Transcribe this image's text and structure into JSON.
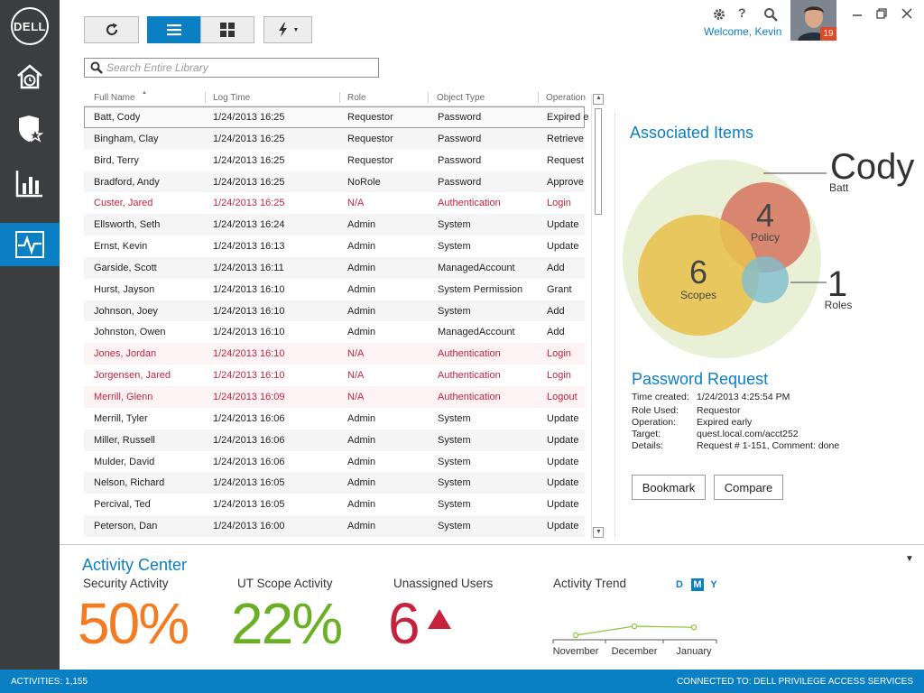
{
  "nav": {
    "logo": "DELL",
    "items": [
      {
        "icon": "home-clock-icon",
        "active": false
      },
      {
        "icon": "shield-star-icon",
        "active": false
      },
      {
        "icon": "bar-chart-icon",
        "active": false
      },
      {
        "icon": "activity-pulse-icon",
        "active": true
      }
    ]
  },
  "toolbar": {
    "buttons": [
      "refresh-icon",
      "list-view-icon",
      "grid-view-icon",
      "actions-bolt-icon"
    ],
    "active": "list-view-icon"
  },
  "search": {
    "placeholder": "Search Entire Library"
  },
  "topbar": {
    "welcome": "Welcome, Kevin",
    "badge": "19",
    "icons": [
      "gear-icon",
      "help-icon",
      "search-icon"
    ]
  },
  "table": {
    "columns": [
      "Full Name",
      "Log Time",
      "Role",
      "Object Type",
      "Operation"
    ],
    "rows": [
      {
        "name": "Batt, Cody",
        "time": "1/24/2013 16:25",
        "role": "Requestor",
        "type": "Password",
        "op": "Expired e",
        "alert": false,
        "selected": true
      },
      {
        "name": "Bingham, Clay",
        "time": "1/24/2013 16:25",
        "role": "Requestor",
        "type": "Password",
        "op": "Retrieve",
        "alert": false,
        "selected": false
      },
      {
        "name": "Bird, Terry",
        "time": "1/24/2013 16:25",
        "role": "Requestor",
        "type": "Password",
        "op": "Request",
        "alert": false,
        "selected": false
      },
      {
        "name": "Bradford, Andy",
        "time": "1/24/2013 16:25",
        "role": "NoRole",
        "type": "Password",
        "op": "Approve",
        "alert": false,
        "selected": false
      },
      {
        "name": "Custer, Jared",
        "time": "1/24/2013 16:25",
        "role": "N/A",
        "type": "Authentication",
        "op": "Login",
        "alert": true,
        "selected": false
      },
      {
        "name": "Ellsworth, Seth",
        "time": "1/24/2013 16:24",
        "role": "Admin",
        "type": "System",
        "op": "Update",
        "alert": false,
        "selected": false
      },
      {
        "name": "Ernst, Kevin",
        "time": "1/24/2013 16:13",
        "role": "Admin",
        "type": "System",
        "op": "Update",
        "alert": false,
        "selected": false
      },
      {
        "name": "Garside, Scott",
        "time": "1/24/2013 16:11",
        "role": "Admin",
        "type": "ManagedAccount",
        "op": "Add",
        "alert": false,
        "selected": false
      },
      {
        "name": "Hurst, Jayson",
        "time": "1/24/2013 16:10",
        "role": "Admin",
        "type": "System Permission",
        "op": "Grant",
        "alert": false,
        "selected": false
      },
      {
        "name": "Johnson, Joey",
        "time": "1/24/2013 16:10",
        "role": "Admin",
        "type": "System",
        "op": "Add",
        "alert": false,
        "selected": false
      },
      {
        "name": "Johnston, Owen",
        "time": "1/24/2013 16:10",
        "role": "Admin",
        "type": "ManagedAccount",
        "op": "Add",
        "alert": false,
        "selected": false
      },
      {
        "name": "Jones, Jordan",
        "time": "1/24/2013 16:10",
        "role": "N/A",
        "type": "Authentication",
        "op": "Login",
        "alert": true,
        "selected": false
      },
      {
        "name": "Jorgensen, Jared",
        "time": "1/24/2013 16:10",
        "role": "N/A",
        "type": "Authentication",
        "op": "Login",
        "alert": true,
        "selected": false
      },
      {
        "name": "Merrill, Glenn",
        "time": "1/24/2013 16:09",
        "role": "N/A",
        "type": "Authentication",
        "op": "Logout",
        "alert": true,
        "selected": false
      },
      {
        "name": "Merrill, Tyler",
        "time": "1/24/2013 16:06",
        "role": "Admin",
        "type": "System",
        "op": "Update",
        "alert": false,
        "selected": false
      },
      {
        "name": "Miller, Russell",
        "time": "1/24/2013 16:06",
        "role": "Admin",
        "type": "System",
        "op": "Update",
        "alert": false,
        "selected": false
      },
      {
        "name": "Mulder, David",
        "time": "1/24/2013 16:06",
        "role": "Admin",
        "type": "System",
        "op": "Update",
        "alert": false,
        "selected": false
      },
      {
        "name": "Nelson, Richard",
        "time": "1/24/2013 16:05",
        "role": "Admin",
        "type": "System",
        "op": "Update",
        "alert": false,
        "selected": false
      },
      {
        "name": "Percival, Ted",
        "time": "1/24/2013 16:05",
        "role": "Admin",
        "type": "System",
        "op": "Update",
        "alert": false,
        "selected": false
      },
      {
        "name": "Peterson, Dan",
        "time": "1/24/2013 16:00",
        "role": "Admin",
        "type": "System",
        "op": "Update",
        "alert": false,
        "selected": false
      }
    ]
  },
  "associated": {
    "title": "Associated Items",
    "first_name": "Cody",
    "last_name": "Batt",
    "policy_count": "4",
    "policy_label": "Policy",
    "scopes_count": "6",
    "scopes_label": "Scopes",
    "roles_count": "1",
    "roles_label": "Roles"
  },
  "detail": {
    "title": "Password Request",
    "fields": [
      {
        "label": "Time created:",
        "value": "1/24/2013  4:25:54 PM"
      },
      {
        "label": "Role Used:",
        "value": "Requestor"
      },
      {
        "label": "Operation:",
        "value": "Expired early"
      },
      {
        "label": "Target:",
        "value": "quest.local.com/acct252"
      },
      {
        "label": "Details:",
        "value": "Request # 1-151, Comment: done"
      }
    ],
    "bookmark": "Bookmark",
    "compare": "Compare"
  },
  "activity": {
    "title": "Activity Center",
    "metrics": [
      {
        "label": "Security Activity",
        "value": "50%",
        "color": "#f47b20"
      },
      {
        "label": "UT Scope Activity",
        "value": "22%",
        "color": "#6ab023"
      },
      {
        "label": "Unassigned Users",
        "value": "6",
        "color": "#c7223c"
      }
    ],
    "trend": {
      "label": "Activity Trend",
      "periods": [
        "D",
        "M",
        "Y"
      ],
      "active_period": "M",
      "months": [
        "November",
        "December",
        "January"
      ]
    }
  },
  "chart_data": {
    "type": "line",
    "categories": [
      "November",
      "December",
      "January"
    ],
    "values": [
      0.2,
      0.6,
      0.55
    ]
  },
  "status": {
    "left": "ACTIVITIES:  1,155",
    "right": "CONNECTED TO: DELL PRIVILEGE ACCESS SERVICES"
  },
  "colors": {
    "accent": "#0a7fc3",
    "alert": "#c7223c",
    "rail": "#3c3d3f"
  }
}
